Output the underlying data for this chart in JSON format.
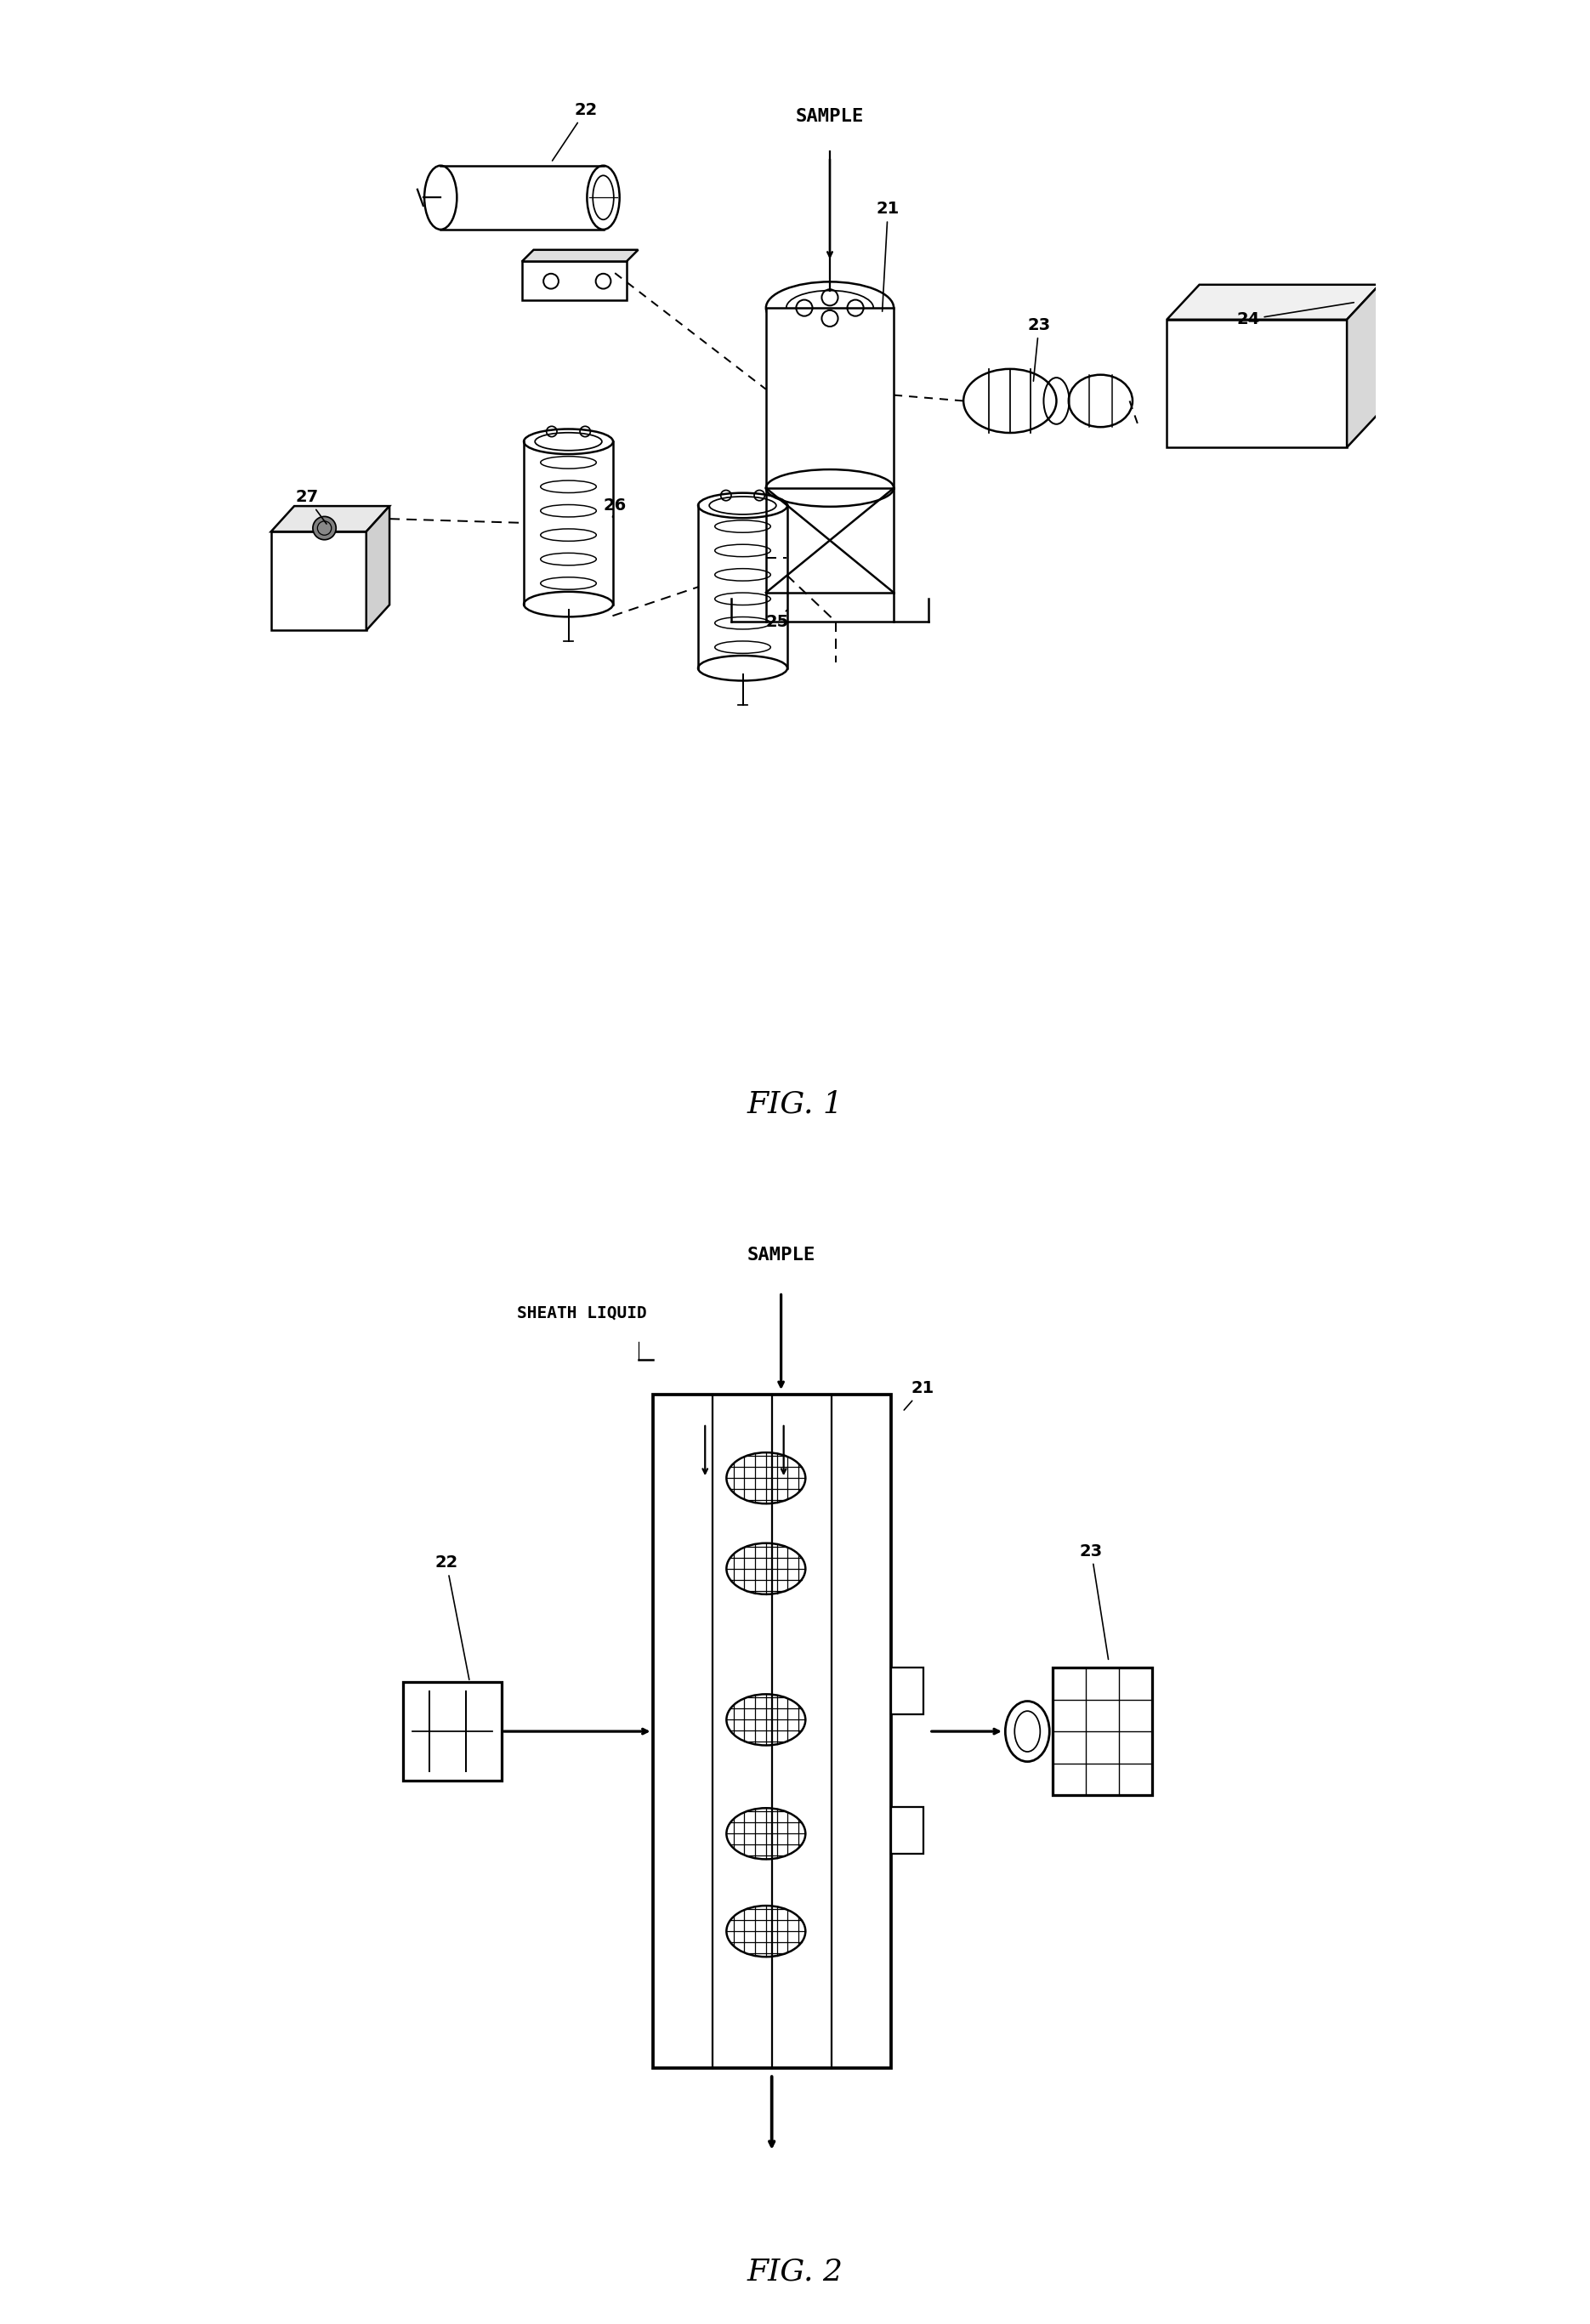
{
  "bg_color": "#ffffff",
  "line_color": "#000000",
  "fig1_caption": "FIG. 1",
  "fig2_caption": "FIG. 2",
  "fig1_sample": "SAMPLE",
  "fig2_sample": "SAMPLE",
  "fig2_sheath": "SHEATH LIQUID"
}
